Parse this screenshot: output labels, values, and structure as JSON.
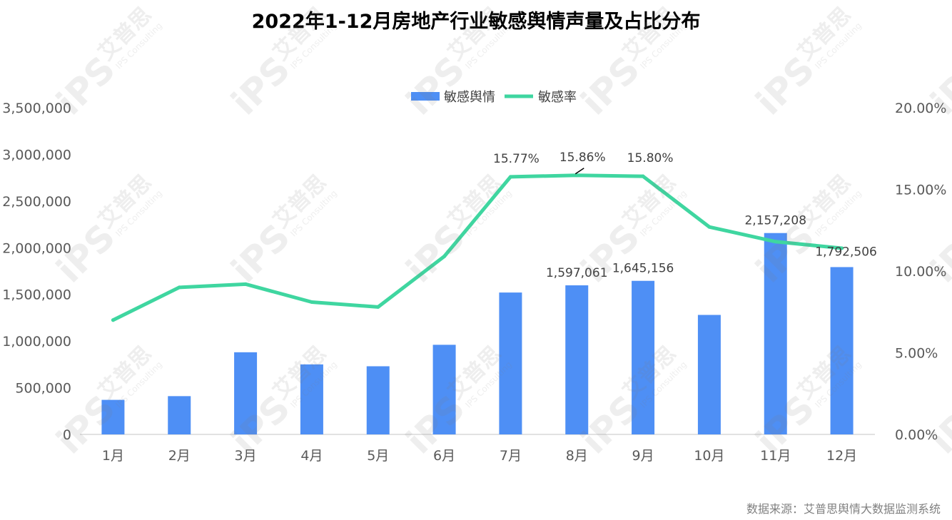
{
  "title": "2022年1-12月房地产行业敏感舆情声量及占比分布",
  "source": "数据来源：艾普思舆情大数据监测系统",
  "watermark": {
    "logo": "iPS",
    "brand": "艾普思",
    "sub": "IPS Consulting"
  },
  "colors": {
    "bar": "#4e8ff5",
    "line": "#3fd6a0",
    "axis": "#d9d9d9"
  },
  "legend": {
    "position": "top-center"
  },
  "chart_data": {
    "type": "bar+line",
    "categories": [
      "1月",
      "2月",
      "3月",
      "4月",
      "5月",
      "6月",
      "7月",
      "8月",
      "9月",
      "10月",
      "11月",
      "12月"
    ],
    "series": [
      {
        "name": "敏感舆情",
        "type": "bar",
        "axis": "left",
        "values": [
          370000,
          410000,
          880000,
          750000,
          730000,
          960000,
          1520000,
          1597061,
          1645156,
          1280000,
          2157208,
          1792506
        ],
        "labels": [
          "",
          "",
          "",
          "",
          "",
          "",
          "",
          "1,597,061",
          "1,645,156",
          "",
          "2,157,208",
          "1,792,506"
        ]
      },
      {
        "name": "敏感率",
        "type": "line",
        "axis": "right",
        "values": [
          7.0,
          9.0,
          9.2,
          8.1,
          7.8,
          10.9,
          15.77,
          15.86,
          15.8,
          12.7,
          11.8,
          11.4
        ],
        "labels": [
          "",
          "",
          "",
          "",
          "",
          "",
          "15.77%",
          "15.86%",
          "15.80%",
          "",
          "",
          ""
        ]
      }
    ],
    "y_left": {
      "min": 0,
      "max": 3500000,
      "ticks": [
        "0",
        "500,000",
        "1,000,000",
        "1,500,000",
        "2,000,000",
        "2,500,000",
        "3,000,000",
        "3,500,000"
      ]
    },
    "y_right": {
      "min": 0,
      "max": 20,
      "ticks": [
        "0.00%",
        "5.00%",
        "10.00%",
        "15.00%",
        "20.00%"
      ]
    },
    "grid": false
  }
}
